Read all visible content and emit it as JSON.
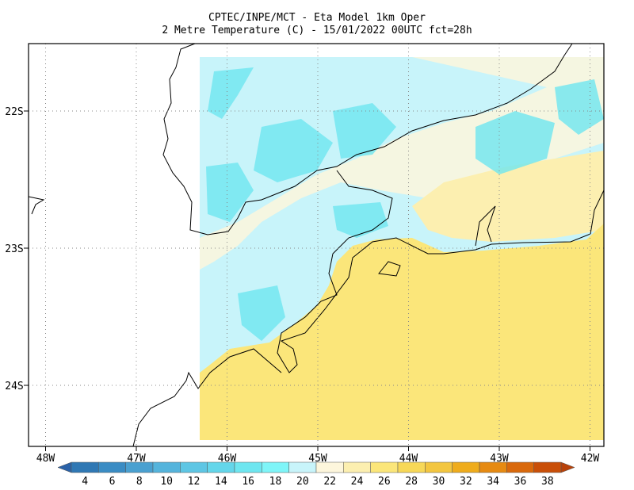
{
  "header": {
    "line1": "CPTEC/INPE/MCT -  Eta Model 1km Oper",
    "line2": "2 Metre Temperature (C) - 15/01/2022 00UTC fct=28h"
  },
  "map": {
    "lat_labels": [
      "22S",
      "23S",
      "24S"
    ],
    "lon_labels": [
      "48W",
      "47W",
      "46W",
      "45W",
      "44W",
      "43W",
      "42W"
    ]
  },
  "colorbar": {
    "levels": [
      4,
      6,
      8,
      10,
      12,
      14,
      16,
      18,
      20,
      22,
      24,
      26,
      28,
      30,
      32,
      34,
      36,
      38
    ],
    "colors": [
      "#2f78b4",
      "#3a8cc4",
      "#4aa0d0",
      "#55b4dc",
      "#5ec6e4",
      "#64d6ea",
      "#6ee6f0",
      "#7ff5f8",
      "#c8f4fa",
      "#fdf6dc",
      "#fcefb0",
      "#fbe67a",
      "#f7d858",
      "#f3c640",
      "#efac1c",
      "#e68a12",
      "#d9690c",
      "#c94f08"
    ],
    "low_color": "#2a62a8",
    "high_color": "#b8420a"
  }
}
